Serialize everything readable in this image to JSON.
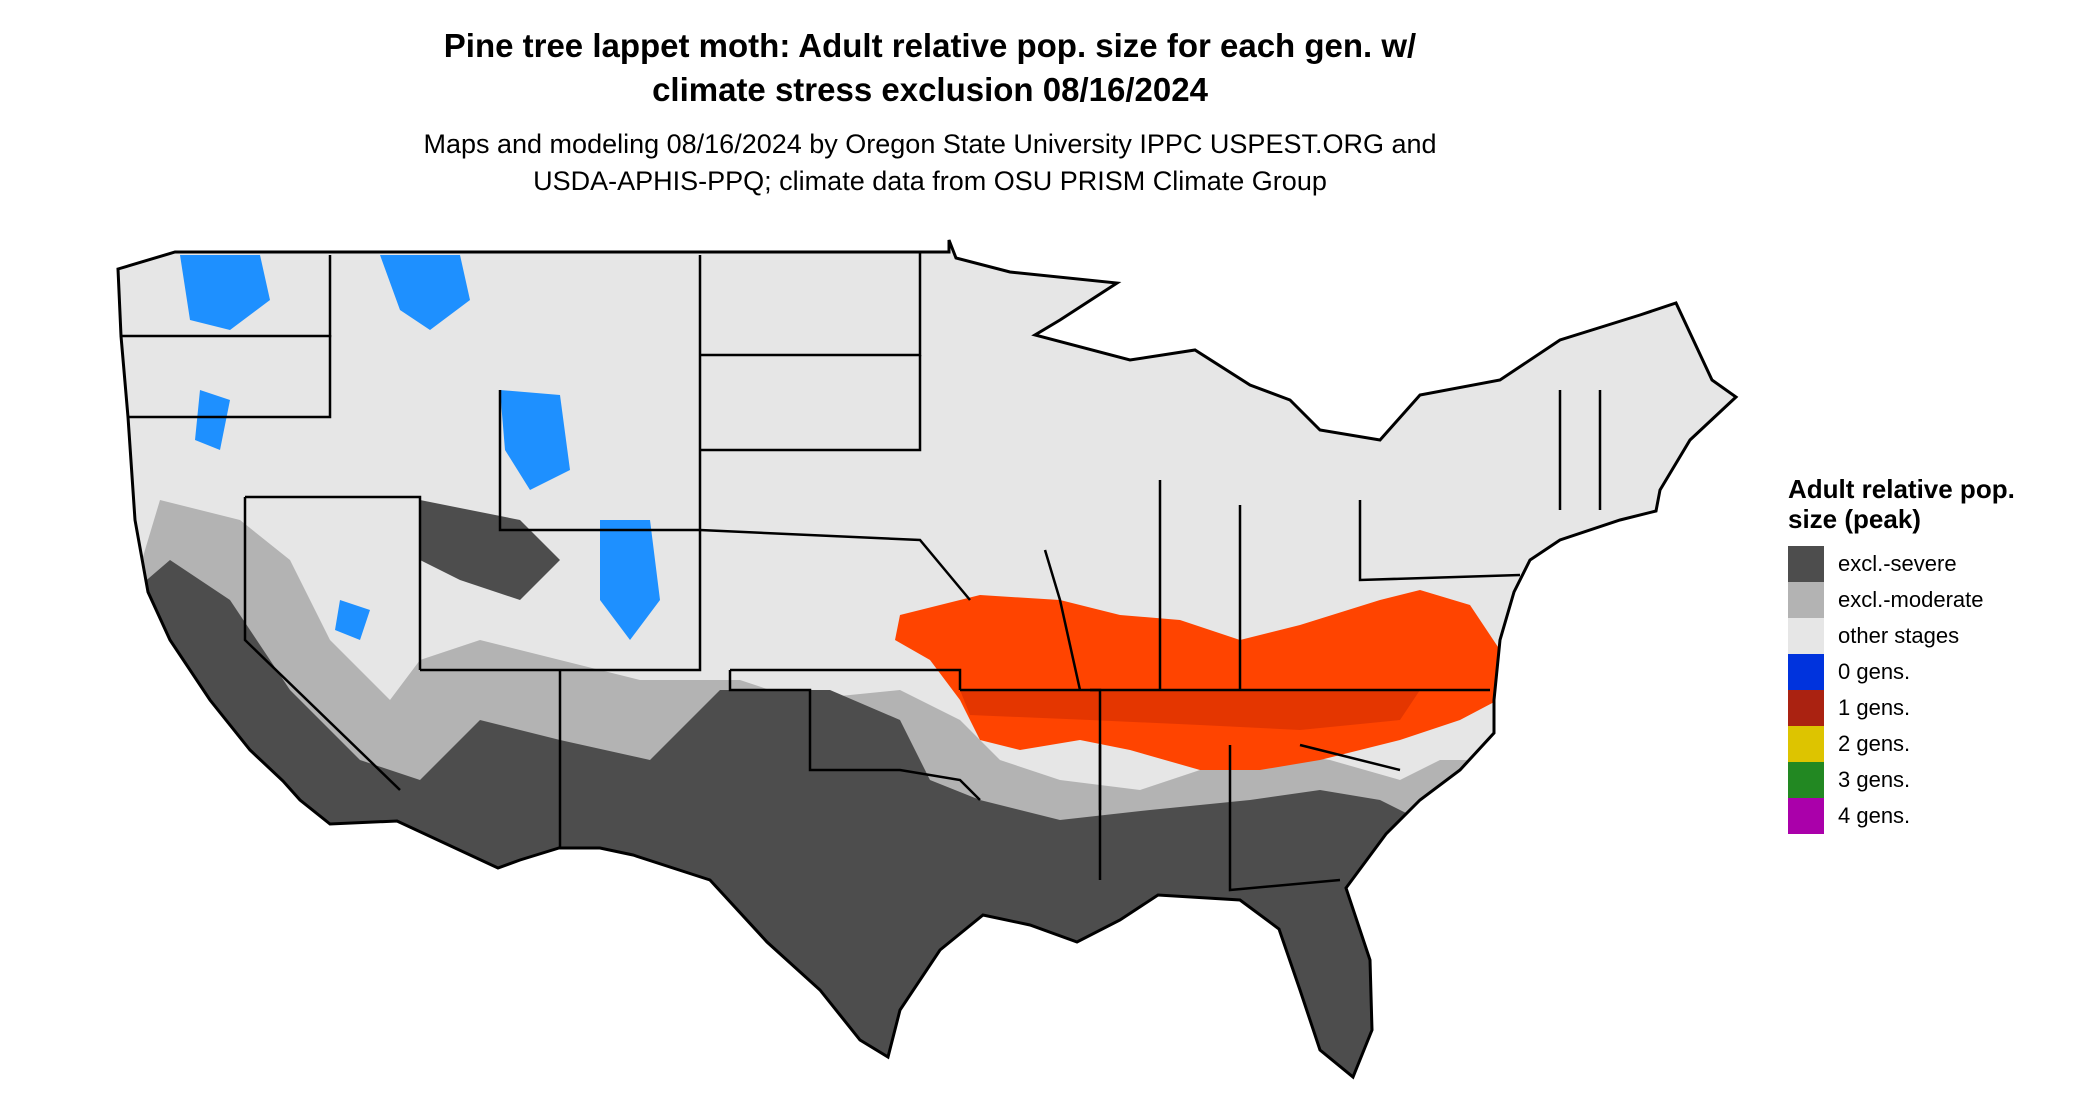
{
  "title": {
    "line1": "Pine tree lappet moth: Adult relative pop. size for each gen. w/",
    "line2": "climate stress exclusion 08/16/2024"
  },
  "subtitle": {
    "line1": "Maps and modeling 08/16/2024 by Oregon State University IPPC USPEST.ORG and",
    "line2": "USDA-APHIS-PPQ; climate data from OSU PRISM Climate Group"
  },
  "legend": {
    "title": "Adult relative pop. size (peak)",
    "items": [
      {
        "label": "excl.-severe",
        "color": "#4d4d4d"
      },
      {
        "label": "excl.-moderate",
        "color": "#b3b3b3"
      },
      {
        "label": "other stages",
        "color": "#e6e6e6"
      },
      {
        "label": "0 gens.",
        "color": "#0033dd"
      },
      {
        "label": "1 gens.",
        "color": "#aa2211"
      },
      {
        "label": "2 gens.",
        "color": "#ddc400"
      },
      {
        "label": "3 gens.",
        "color": "#228822"
      },
      {
        "label": "4 gens.",
        "color": "#aa00aa"
      }
    ]
  },
  "map_colors": {
    "red_overlay": "#ff4400",
    "blue_overlay": "#1e90ff",
    "border": "#000000"
  }
}
